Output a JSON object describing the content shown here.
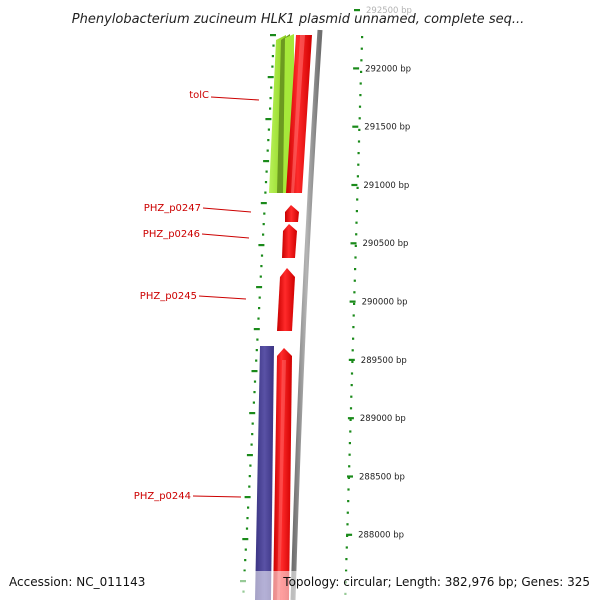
{
  "title": "Phenylobacterium zucineum HLK1 plasmid unnamed, complete seq...",
  "footer": {
    "accession": "Accession: NC_011143",
    "topology": "Topology: circular; Length: 382,976 bp; Genes: 325"
  },
  "colors": {
    "gene_label": "#cc0000",
    "tick": "#1a8a1a",
    "red_track": "#ff0000",
    "green_track": "#9be22d",
    "dark_green_track": "#5f8a1a",
    "purple_track": "#4a4296",
    "backbone": "#888888"
  },
  "genes": [
    {
      "name": "tolC"
    },
    {
      "name": "PHZ_p0247"
    },
    {
      "name": "PHZ_p0246"
    },
    {
      "name": "PHZ_p0245"
    },
    {
      "name": "PHZ_p0244"
    }
  ],
  "ticks": [
    {
      "bp": 292500,
      "label": "292500 bp"
    },
    {
      "bp": 292000,
      "label": "292000 bp"
    },
    {
      "bp": 291500,
      "label": "291500 bp"
    },
    {
      "bp": 291000,
      "label": "291000 bp"
    },
    {
      "bp": 290500,
      "label": "290500 bp"
    },
    {
      "bp": 290000,
      "label": "290000 bp"
    },
    {
      "bp": 289500,
      "label": "289500 bp"
    },
    {
      "bp": 289000,
      "label": "289000 bp"
    },
    {
      "bp": 288500,
      "label": "288500 bp"
    },
    {
      "bp": 288000,
      "label": "288000 bp"
    }
  ]
}
